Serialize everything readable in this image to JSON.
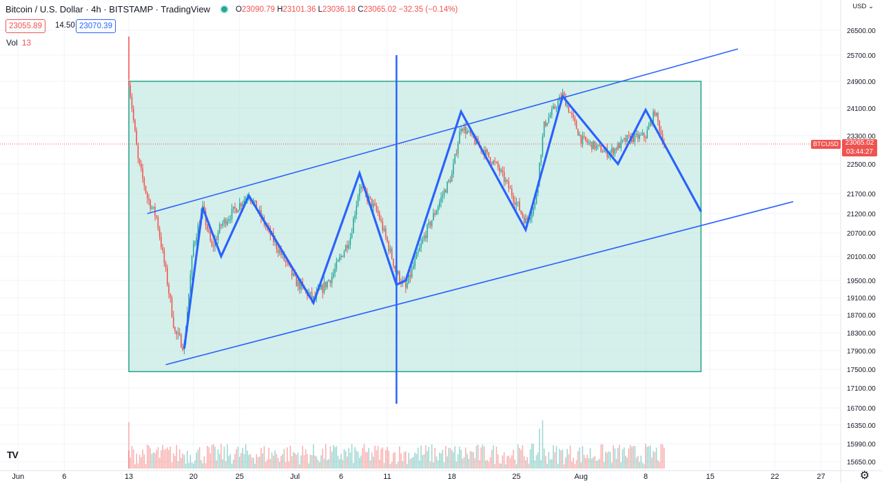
{
  "header": {
    "symbol": "Bitcoin / U.S. Dollar · 4h · BITSTAMP · TradingView",
    "open_label": "O",
    "open": "23090.79",
    "high_label": "H",
    "high": "23101.36",
    "low_label": "L",
    "low": "23036.18",
    "close_label": "C",
    "close": "23065.02",
    "change": "−32.35 (−0.14%)"
  },
  "quote": {
    "bid": "23055.89",
    "spread": "14.50",
    "ask": "23070.39"
  },
  "volume": {
    "label": "Vol",
    "value": "13"
  },
  "price_axis": {
    "currency": "USD",
    "currency_icon": "chevron-down-icon",
    "last_price": "23065.02",
    "countdown": "03:44:27",
    "symbol_tag": "BTCUSD"
  },
  "footer": {
    "logo": "TV",
    "settings_icon": "gear-icon"
  },
  "colors": {
    "up": "#26a69a",
    "down": "#ef5350",
    "drawing": "#2962ff",
    "rect_fill": "#b9e4dc",
    "rect_stroke": "#22a38a",
    "grid": "#f0f3fa"
  },
  "chart_data": {
    "type": "candlestick",
    "title": "Bitcoin / U.S. Dollar · 4h · BITSTAMP",
    "ylim": [
      15500,
      26800
    ],
    "y_ticks": [
      26500,
      25700,
      24900,
      24100,
      23300,
      22500,
      21700,
      21200,
      20700,
      20100,
      19500,
      19100,
      18700,
      18300,
      17900,
      17500,
      17100,
      16700,
      16350,
      15990,
      15650
    ],
    "y_tick_labels": [
      "26500.00",
      "25700.00",
      "24900.00",
      "24100.00",
      "23300.00",
      "22500.00",
      "21700.00",
      "21200.00",
      "20700.00",
      "20100.00",
      "19500.00",
      "19100.00",
      "18700.00",
      "18300.00",
      "17900.00",
      "17500.00",
      "17100.00",
      "16700.00",
      "16350.00",
      "15990.00",
      "15650.00"
    ],
    "xlim": [
      "2022-06-01",
      "2022-08-31"
    ],
    "x_ticks": [
      "2022-06-01",
      "2022-06-06",
      "2022-06-13",
      "2022-06-20",
      "2022-06-25",
      "2022-07-01",
      "2022-07-06",
      "2022-07-11",
      "2022-07-18",
      "2022-07-25",
      "2022-08-01",
      "2022-08-08",
      "2022-08-15",
      "2022-08-22",
      "2022-08-27"
    ],
    "x_tick_labels": [
      "Jun",
      "6",
      "13",
      "20",
      "25",
      "Jul",
      "6",
      "11",
      "18",
      "25",
      "Aug",
      "8",
      "15",
      "22",
      "27"
    ],
    "price_path": [
      [
        "2022-06-13",
        26700
      ],
      [
        "2022-06-13",
        24900
      ],
      [
        "2022-06-14",
        22600
      ],
      [
        "2022-06-15",
        21600
      ],
      [
        "2022-06-16",
        21100
      ],
      [
        "2022-06-18",
        18300
      ],
      [
        "2022-06-19",
        18000
      ],
      [
        "2022-06-20",
        20400
      ],
      [
        "2022-06-21",
        21300
      ],
      [
        "2022-06-22",
        20300
      ],
      [
        "2022-06-23",
        20900
      ],
      [
        "2022-06-26",
        21700
      ],
      [
        "2022-06-28",
        20800
      ],
      [
        "2022-07-01",
        19500
      ],
      [
        "2022-07-03",
        19050
      ],
      [
        "2022-07-05",
        19600
      ],
      [
        "2022-07-07",
        20600
      ],
      [
        "2022-07-08",
        21900
      ],
      [
        "2022-07-10",
        21200
      ],
      [
        "2022-07-12",
        19700
      ],
      [
        "2022-07-13",
        19300
      ],
      [
        "2022-07-15",
        20600
      ],
      [
        "2022-07-18",
        22200
      ],
      [
        "2022-07-19",
        23600
      ],
      [
        "2022-07-21",
        23000
      ],
      [
        "2022-07-23",
        22400
      ],
      [
        "2022-07-26",
        21000
      ],
      [
        "2022-07-27",
        21400
      ],
      [
        "2022-07-28",
        23600
      ],
      [
        "2022-07-30",
        24500
      ],
      [
        "2022-08-01",
        23200
      ],
      [
        "2022-08-04",
        22800
      ],
      [
        "2022-08-06",
        23200
      ],
      [
        "2022-08-08",
        23300
      ],
      [
        "2022-08-09",
        24000
      ],
      [
        "2022-08-10",
        23065
      ]
    ],
    "drawings": {
      "rectangle": {
        "from": "2022-06-13",
        "to": "2022-08-14",
        "top": 24900,
        "bottom": 17450
      },
      "channel_upper": [
        [
          "2022-06-15",
          21200
        ],
        [
          "2022-08-18",
          25900
        ]
      ],
      "channel_lower": [
        [
          "2022-06-17",
          17600
        ],
        [
          "2022-08-24",
          21500
        ]
      ],
      "vertical_line": "2022-07-12",
      "zigzag": [
        [
          "2022-06-19",
          17950
        ],
        [
          "2022-06-21",
          21350
        ],
        [
          "2022-06-23",
          20100
        ],
        [
          "2022-06-26",
          21650
        ],
        [
          "2022-07-03",
          18980
        ],
        [
          "2022-07-08",
          22250
        ],
        [
          "2022-07-12",
          19400
        ],
        [
          "2022-07-13",
          19500
        ],
        [
          "2022-07-19",
          24000
        ],
        [
          "2022-07-26",
          20780
        ],
        [
          "2022-07-30",
          24450
        ],
        [
          "2022-08-05",
          22500
        ],
        [
          "2022-08-08",
          24050
        ],
        [
          "2022-08-14",
          21250
        ]
      ]
    },
    "last_price": 23065.02,
    "grid": true,
    "legend": "none"
  }
}
